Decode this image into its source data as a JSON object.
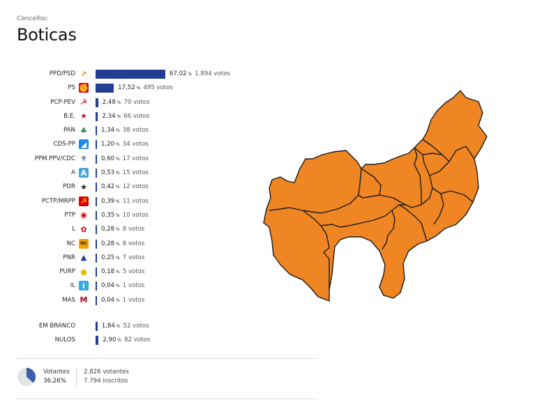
{
  "header": {
    "label": "Concelho:",
    "name": "Boticas"
  },
  "colors": {
    "bar": "#233e93",
    "map_fill": "#ef8623",
    "map_stroke": "#1a1a1a",
    "pie_bg": "#e3e3e3",
    "pie_fill": "#3b5dab"
  },
  "parties": [
    {
      "name": "PPD/PSD",
      "icon": "psd-arrow-icon",
      "pct": "67,02",
      "votes": "1.894 votos",
      "share": 67.02
    },
    {
      "name": "PS",
      "icon": "ps-fist-icon",
      "pct": "17,52",
      "votes": "495 votos",
      "share": 17.52
    },
    {
      "name": "PCP-PEV",
      "icon": "pcp-pev-icon",
      "pct": "2,48",
      "votes": "70 votos",
      "share": 2.48
    },
    {
      "name": "B.E.",
      "icon": "be-star-icon",
      "pct": "2,34",
      "votes": "66 votos",
      "share": 2.34
    },
    {
      "name": "PAN",
      "icon": "pan-tree-icon",
      "pct": "1,34",
      "votes": "38 votos",
      "share": 1.34
    },
    {
      "name": "CDS-PP",
      "icon": "cds-pp-icon",
      "pct": "1,20",
      "votes": "34 votos",
      "share": 1.2
    },
    {
      "name": "PPM.PPV/CDC",
      "icon": "ppm-ppv-cdc-icon",
      "pct": "0,60",
      "votes": "17 votos",
      "share": 0.6
    },
    {
      "name": "A",
      "icon": "alianca-icon",
      "pct": "0,53",
      "votes": "15 votos",
      "share": 0.53
    },
    {
      "name": "PDR",
      "icon": "pdr-stars-icon",
      "pct": "0,42",
      "votes": "12 votos",
      "share": 0.42
    },
    {
      "name": "PCTP/MRPP",
      "icon": "pctp-mrpp-icon",
      "pct": "0,39",
      "votes": "11 votos",
      "share": 0.39
    },
    {
      "name": "PTP",
      "icon": "ptp-icon",
      "pct": "0,35",
      "votes": "10 votos",
      "share": 0.35
    },
    {
      "name": "L",
      "icon": "livre-poppy-icon",
      "pct": "0,28",
      "votes": "8 votos",
      "share": 0.28
    },
    {
      "name": "NC",
      "icon": "nc-icon",
      "pct": "0,28",
      "votes": "8 votos",
      "share": 0.28
    },
    {
      "name": "PNR",
      "icon": "pnr-flame-icon",
      "pct": "0,25",
      "votes": "7 votos",
      "share": 0.25
    },
    {
      "name": "PURP",
      "icon": "purp-icon",
      "pct": "0,18",
      "votes": "5 votos",
      "share": 0.18
    },
    {
      "name": "IL",
      "icon": "il-icon",
      "pct": "0,04",
      "votes": "1 votos",
      "share": 0.04
    },
    {
      "name": "MAS",
      "icon": "mas-icon",
      "pct": "0,04",
      "votes": "1 votos",
      "share": 0.04
    }
  ],
  "others": [
    {
      "name": "EM BRANCO",
      "pct": "1,84",
      "votes": "52 votos",
      "share": 1.84
    },
    {
      "name": "NULOS",
      "pct": "2,90",
      "votes": "82 votos",
      "share": 2.9
    }
  ],
  "pct_sign": "%",
  "turnout": {
    "label": "Votantes",
    "pct": "36,26%",
    "share": 36.26,
    "votantes": "2.826 votantes",
    "inscritos": "7.794 inscritos"
  }
}
